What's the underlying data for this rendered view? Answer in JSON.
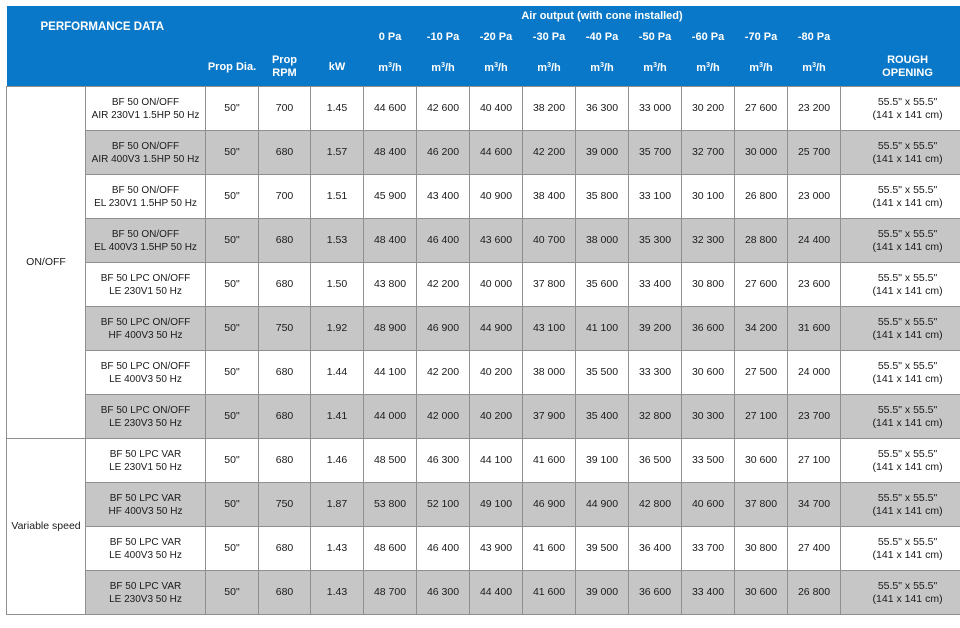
{
  "header": {
    "performance_title": "PERFORMANCE DATA",
    "air_output_title": "Air output (with cone installed)",
    "prop_dia": "Prop Dia.",
    "prop_rpm_line1": "Prop",
    "prop_rpm_line2": "RPM",
    "kw": "kW",
    "pressures": [
      "0 Pa",
      "-10 Pa",
      "-20 Pa",
      "-30 Pa",
      "-40 Pa",
      "-50 Pa",
      "-60 Pa",
      "-70 Pa",
      "-80 Pa"
    ],
    "unit_base": "m",
    "unit_sup": "3",
    "unit_tail": "/h",
    "rough_line1": "ROUGH",
    "rough_line2": "OPENING"
  },
  "groups": [
    {
      "label": "ON/OFF",
      "row_count": 8
    },
    {
      "label": "Variable speed",
      "row_count": 4
    }
  ],
  "rows": [
    {
      "model_line1": "BF 50 ON/OFF",
      "model_line2": "AIR 230V1 1.5HP 50 Hz",
      "dia": "50\"",
      "rpm": "700",
      "kw": "1.45",
      "air": [
        "44 600",
        "42 600",
        "40 400",
        "38 200",
        "36 300",
        "33 000",
        "30 200",
        "27 600",
        "23 200"
      ],
      "rough_line1": "55.5\" x 55.5\"",
      "rough_line2": "(141 x 141 cm)"
    },
    {
      "model_line1": "BF 50 ON/OFF",
      "model_line2": "AIR 400V3 1.5HP 50 Hz",
      "dia": "50\"",
      "rpm": "680",
      "kw": "1.57",
      "air": [
        "48 400",
        "46 200",
        "44 600",
        "42 200",
        "39 000",
        "35 700",
        "32 700",
        "30 000",
        "25 700"
      ],
      "rough_line1": "55.5\" x 55.5\"",
      "rough_line2": "(141 x 141 cm)"
    },
    {
      "model_line1": "BF 50 ON/OFF",
      "model_line2": "EL 230V1 1.5HP 50 Hz",
      "dia": "50\"",
      "rpm": "700",
      "kw": "1.51",
      "air": [
        "45 900",
        "43 400",
        "40 900",
        "38 400",
        "35 800",
        "33 100",
        "30 100",
        "26 800",
        "23 000"
      ],
      "rough_line1": "55.5\" x 55.5\"",
      "rough_line2": "(141 x 141 cm)"
    },
    {
      "model_line1": "BF 50 ON/OFF",
      "model_line2": "EL 400V3 1.5HP 50 Hz",
      "dia": "50\"",
      "rpm": "680",
      "kw": "1.53",
      "air": [
        "48 400",
        "46 400",
        "43 600",
        "40 700",
        "38 000",
        "35 300",
        "32 300",
        "28 800",
        "24 400"
      ],
      "rough_line1": "55.5\" x 55.5\"",
      "rough_line2": "(141 x 141 cm)"
    },
    {
      "model_line1": "BF 50 LPC ON/OFF",
      "model_line2": "LE 230V1 50 Hz",
      "dia": "50\"",
      "rpm": "680",
      "kw": "1.50",
      "air": [
        "43 800",
        "42 200",
        "40 000",
        "37 800",
        "35 600",
        "33 400",
        "30 800",
        "27 600",
        "23 600"
      ],
      "rough_line1": "55.5\" x 55.5\"",
      "rough_line2": "(141 x 141 cm)"
    },
    {
      "model_line1": "BF 50 LPC ON/OFF",
      "model_line2": "HF 400V3 50 Hz",
      "dia": "50\"",
      "rpm": "750",
      "kw": "1.92",
      "air": [
        "48 900",
        "46 900",
        "44 900",
        "43 100",
        "41 100",
        "39 200",
        "36 600",
        "34 200",
        "31 600"
      ],
      "rough_line1": "55.5\" x 55.5\"",
      "rough_line2": "(141 x 141 cm)"
    },
    {
      "model_line1": "BF 50 LPC ON/OFF",
      "model_line2": "LE 400V3 50 Hz",
      "dia": "50\"",
      "rpm": "680",
      "kw": "1.44",
      "air": [
        "44 100",
        "42 200",
        "40 200",
        "38 000",
        "35 500",
        "33 300",
        "30 600",
        "27 500",
        "24 000"
      ],
      "rough_line1": "55.5\" x 55.5\"",
      "rough_line2": "(141 x 141 cm)"
    },
    {
      "model_line1": "BF 50 LPC ON/OFF",
      "model_line2": "LE 230V3 50 Hz",
      "dia": "50\"",
      "rpm": "680",
      "kw": "1.41",
      "air": [
        "44 000",
        "42 000",
        "40 200",
        "37 900",
        "35 400",
        "32 800",
        "30 300",
        "27 100",
        "23 700"
      ],
      "rough_line1": "55.5\" x 55.5\"",
      "rough_line2": "(141 x 141 cm)"
    },
    {
      "model_line1": "BF 50 LPC VAR",
      "model_line2": "LE 230V1 50 Hz",
      "dia": "50\"",
      "rpm": "680",
      "kw": "1.46",
      "air": [
        "48 500",
        "46 300",
        "44 100",
        "41 600",
        "39 100",
        "36 500",
        "33 500",
        "30 600",
        "27 100"
      ],
      "rough_line1": "55.5\" x 55.5\"",
      "rough_line2": "(141 x 141 cm)"
    },
    {
      "model_line1": "BF 50 LPC VAR",
      "model_line2": "HF 400V3 50 Hz",
      "dia": "50\"",
      "rpm": "750",
      "kw": "1.87",
      "air": [
        "53 800",
        "52 100",
        "49 100",
        "46 900",
        "44 900",
        "42 800",
        "40 600",
        "37 800",
        "34 700"
      ],
      "rough_line1": "55.5\" x 55.5\"",
      "rough_line2": "(141 x 141 cm)"
    },
    {
      "model_line1": "BF 50 LPC VAR",
      "model_line2": "LE 400V3 50 Hz",
      "dia": "50\"",
      "rpm": "680",
      "kw": "1.43",
      "air": [
        "48 600",
        "46 400",
        "43 900",
        "41 600",
        "39 500",
        "36 400",
        "33 700",
        "30 800",
        "27 400"
      ],
      "rough_line1": "55.5\" x 55.5\"",
      "rough_line2": "(141 x 141 cm)"
    },
    {
      "model_line1": "BF 50 LPC VAR",
      "model_line2": "LE 230V3 50 Hz",
      "dia": "50\"",
      "rpm": "680",
      "kw": "1.43",
      "air": [
        "48 700",
        "46 300",
        "44 400",
        "41 600",
        "39 000",
        "36 600",
        "33 400",
        "30 600",
        "26 800"
      ],
      "rough_line1": "55.5\" x 55.5\"",
      "rough_line2": "(141 x 141 cm)"
    }
  ],
  "colors": {
    "header_blue": "#0a78c8",
    "row_shade": "#c6c6c6",
    "row_plain": "#ffffff",
    "border": "#8f8f8f"
  }
}
